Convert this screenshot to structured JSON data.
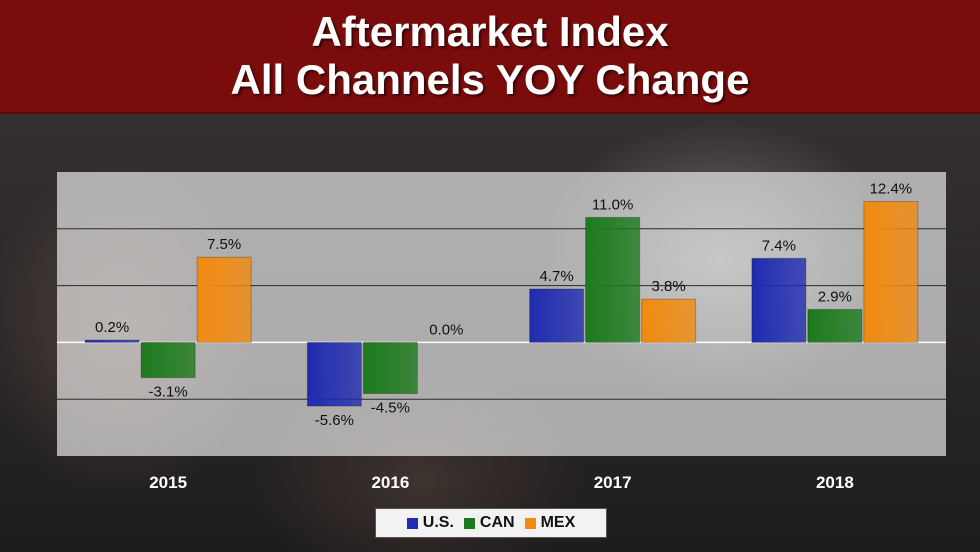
{
  "title": {
    "line1": "Aftermarket Index",
    "line2": "All Channels YOY Change"
  },
  "legend": [
    {
      "label": "U.S.",
      "color": "#1f2bb0"
    },
    {
      "label": "CAN",
      "color": "#1c7a1c"
    },
    {
      "label": "MEX",
      "color": "#f28a10"
    }
  ],
  "chart_data": {
    "type": "bar",
    "categories": [
      "2015",
      "2016",
      "2017",
      "2018"
    ],
    "series": [
      {
        "name": "U.S.",
        "values": [
          0.2,
          -5.6,
          4.7,
          7.4
        ],
        "labels": [
          "0.2%",
          "-5.6%",
          "4.7%",
          "7.4%"
        ],
        "color": "#1f2bb0"
      },
      {
        "name": "CAN",
        "values": [
          -3.1,
          -4.5,
          11.0,
          2.9
        ],
        "labels": [
          "-3.1%",
          "-4.5%",
          "11.0%",
          "2.9%"
        ],
        "color": "#1c7a1c"
      },
      {
        "name": "MEX",
        "values": [
          7.5,
          0.0,
          3.8,
          12.4
        ],
        "labels": [
          "7.5%",
          "0.0%",
          "3.8%",
          "12.4%"
        ],
        "color": "#f28a10"
      }
    ],
    "ylim": [
      -10,
      15
    ],
    "gridlines": [
      -5,
      0,
      5,
      10
    ],
    "legend_position": "bottom"
  }
}
